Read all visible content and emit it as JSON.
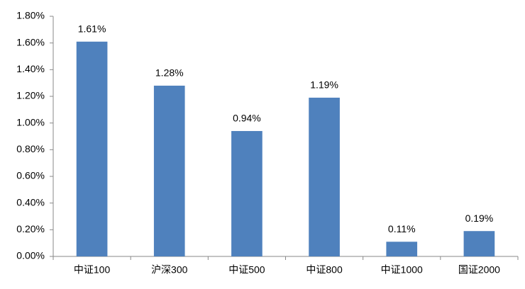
{
  "chart_data": {
    "type": "bar",
    "categories": [
      "中证100",
      "沪深300",
      "中证500",
      "中证800",
      "中证1000",
      "国证2000"
    ],
    "values": [
      1.61,
      1.28,
      0.94,
      1.19,
      0.11,
      0.19
    ],
    "value_labels": [
      "1.61%",
      "1.28%",
      "0.94%",
      "1.19%",
      "0.11%",
      "0.19%"
    ],
    "color": "#4f81bd",
    "ylim": [
      0,
      1.8
    ],
    "yticks": [
      {
        "value": 0,
        "label": "0.00%"
      },
      {
        "value": 0.2,
        "label": "0.20%"
      },
      {
        "value": 0.4,
        "label": "0.40%"
      },
      {
        "value": 0.6,
        "label": "0.60%"
      },
      {
        "value": 0.8,
        "label": "0.80%"
      },
      {
        "value": 1.0,
        "label": "1.00%"
      },
      {
        "value": 1.2,
        "label": "1.20%"
      },
      {
        "value": 1.4,
        "label": "1.40%"
      },
      {
        "value": 1.6,
        "label": "1.60%"
      },
      {
        "value": 1.8,
        "label": "1.80%"
      }
    ],
    "grid": false
  }
}
